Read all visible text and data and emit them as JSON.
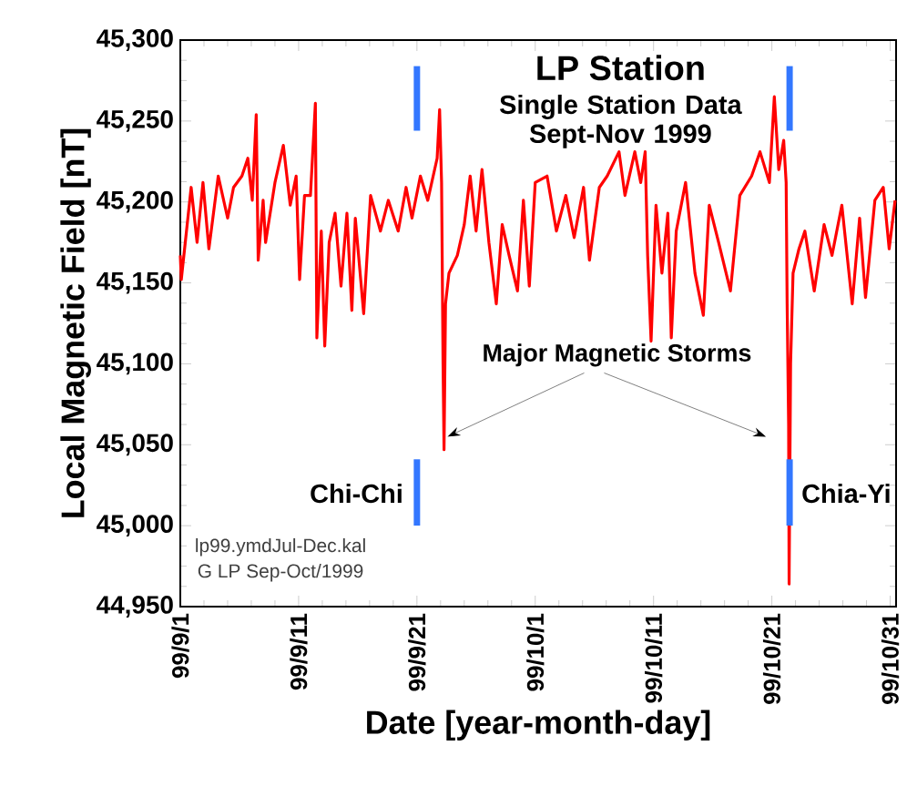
{
  "chart_data": {
    "type": "line",
    "title": "LP Station",
    "subtitle": "Single Station Data Sept-Nov 1999",
    "xlabel": "Date [year-month-day]",
    "ylabel": "Local Magnetic Field [nT]",
    "annotations": [
      {
        "text": "Major Magnetic Storms",
        "x": "1999-09-23T14:00",
        "y": 45055
      },
      "lp99.ymdJul-Dec.kal",
      "G LP Sep-Oct/1999"
    ],
    "xlim": [
      "1999-09-01",
      "1999-10-31T12:00"
    ],
    "xticks": [
      {
        "value": "1999-09-01",
        "label": "99/9/1"
      },
      {
        "value": "1999-09-11",
        "label": "99/9/11"
      },
      {
        "value": "1999-09-21",
        "label": "99/9/21"
      },
      {
        "value": "1999-10-01",
        "label": "99/10/1"
      },
      {
        "value": "1999-10-11",
        "label": "99/10/11"
      },
      {
        "value": "1999-10-21",
        "label": "99/10/21"
      },
      {
        "value": "1999-10-31",
        "label": "99/10/31"
      }
    ],
    "ylim": [
      44950,
      45300
    ],
    "yticks": [
      {
        "value": 44950,
        "label": "44,950"
      },
      {
        "value": 45000,
        "label": "45,000"
      },
      {
        "value": 45050,
        "label": "45,050"
      },
      {
        "value": 45100,
        "label": "45,100"
      },
      {
        "value": 45150,
        "label": "45,150"
      },
      {
        "value": 45200,
        "label": "45,200"
      },
      {
        "value": 45250,
        "label": "45,250"
      },
      {
        "value": 45300,
        "label": "45,300"
      }
    ],
    "ref_lines": [
      {
        "axis": "x",
        "value": "1999-09-21",
        "label": "Chi-Chi",
        "color": "#3377ff"
      },
      {
        "axis": "x",
        "value": "1999-10-22T12:00",
        "label": "Chia-Yi",
        "color": "#3377ff"
      }
    ],
    "series": [
      {
        "color": "#ff0000",
        "x": [
          "1999-09-01T00:00",
          "1999-09-01T02:00",
          "1999-09-01T22:00",
          "1999-09-02T10:00",
          "1999-09-02T22:00",
          "1999-09-03T10:00",
          "1999-09-04T05:00",
          "1999-09-05T00:00",
          "1999-09-05T12:00",
          "1999-09-06T05:00",
          "1999-09-06T17:00",
          "1999-09-07T02:00",
          "1999-09-07T10:00",
          "1999-09-07T14:00",
          "1999-09-08T00:00",
          "1999-09-08T05:00",
          "1999-09-09T00:00",
          "1999-09-09T17:00",
          "1999-09-10T07:00",
          "1999-09-10T19:00",
          "1999-09-11T02:00",
          "1999-09-11T12:00",
          "1999-09-12T00:00",
          "1999-09-12T10:00",
          "1999-09-12T13:00",
          "1999-09-12T22:00",
          "1999-09-13T05:00",
          "1999-09-13T14:00",
          "1999-09-14T02:00",
          "1999-09-14T14:00",
          "1999-09-15T02:00",
          "1999-09-15T12:00",
          "1999-09-15T19:00",
          "1999-09-16T12:00",
          "1999-09-17T02:00",
          "1999-09-17T22:00",
          "1999-09-18T14:00",
          "1999-09-19T10:00",
          "1999-09-20T02:00",
          "1999-09-20T14:00",
          "1999-09-21T07:00",
          "1999-09-21T22:00",
          "1999-09-22T17:00",
          "1999-09-22T22:00",
          "1999-09-23T02:00",
          "1999-09-23T05:00",
          "1999-09-23T07:00",
          "1999-09-23T10:00",
          "1999-09-23T17:00",
          "1999-09-24T10:00",
          "1999-09-25T00:00",
          "1999-09-25T12:00",
          "1999-09-26T00:00",
          "1999-09-26T12:00",
          "1999-09-27T02:00",
          "1999-09-27T17:00",
          "1999-09-28T05:00",
          "1999-09-28T19:00",
          "1999-09-29T12:00",
          "1999-09-30T00:00",
          "1999-09-30T12:00",
          "1999-10-01T00:00",
          "1999-10-02T00:00",
          "1999-10-02T19:00",
          "1999-10-03T14:00",
          "1999-10-04T07:00",
          "1999-10-05T02:00",
          "1999-10-05T14:00",
          "1999-10-06T10:00",
          "1999-10-07T02:00",
          "1999-10-08T02:00",
          "1999-10-08T14:00",
          "1999-10-09T10:00",
          "1999-10-09T22:00",
          "1999-10-10T07:00",
          "1999-10-10T12:00",
          "1999-10-10T19:00",
          "1999-10-11T05:00",
          "1999-10-11T17:00",
          "1999-10-12T05:00",
          "1999-10-12T12:00",
          "1999-10-12T22:00",
          "1999-10-13T17:00",
          "1999-10-14T12:00",
          "1999-10-15T05:00",
          "1999-10-15T17:00",
          "1999-10-16T12:00",
          "1999-10-17T12:00",
          "1999-10-18T07:00",
          "1999-10-19T07:00",
          "1999-10-20T00:00",
          "1999-10-20T19:00",
          "1999-10-21T05:00",
          "1999-10-21T14:00",
          "1999-10-22T00:00",
          "1999-10-22T05:00",
          "1999-10-22T07:00",
          "1999-10-22T10:00",
          "1999-10-22T11:00",
          "1999-10-22T14:00",
          "1999-10-22T19:00",
          "1999-10-23T07:00",
          "1999-10-23T19:00",
          "1999-10-24T14:00",
          "1999-10-25T10:00",
          "1999-10-26T02:00",
          "1999-10-26T22:00",
          "1999-10-27T19:00",
          "1999-10-28T10:00",
          "1999-10-28T22:00",
          "1999-10-29T17:00",
          "1999-10-30T10:00",
          "1999-10-30T22:00",
          "1999-10-31T10:00"
        ],
        "values": [
          45167,
          45152,
          45209,
          45175,
          45212,
          45171,
          45216,
          45190,
          45209,
          45216,
          45227,
          45201,
          45254,
          45164,
          45201,
          45175,
          45212,
          45235,
          45198,
          45216,
          45152,
          45204,
          45204,
          45261,
          45116,
          45182,
          45111,
          45175,
          45193,
          45148,
          45193,
          45133,
          45190,
          45131,
          45204,
          45182,
          45201,
          45182,
          45209,
          45190,
          45216,
          45201,
          45227,
          45257,
          45212,
          45100,
          45047,
          45137,
          45156,
          45167,
          45186,
          45216,
          45182,
          45220,
          45175,
          45137,
          45186,
          45167,
          45145,
          45201,
          45148,
          45212,
          45216,
          45182,
          45204,
          45178,
          45209,
          45164,
          45209,
          45216,
          45231,
          45204,
          45231,
          45212,
          45231,
          45167,
          45114,
          45198,
          45156,
          45193,
          45116,
          45182,
          45212,
          45156,
          45130,
          45198,
          45175,
          45145,
          45204,
          45216,
          45231,
          45212,
          45265,
          45220,
          45238,
          45212,
          45137,
          45062,
          44964,
          45100,
          45156,
          45171,
          45182,
          45145,
          45186,
          45167,
          45198,
          45137,
          45190,
          45141,
          45201,
          45209,
          45171,
          45201
        ]
      }
    ]
  }
}
